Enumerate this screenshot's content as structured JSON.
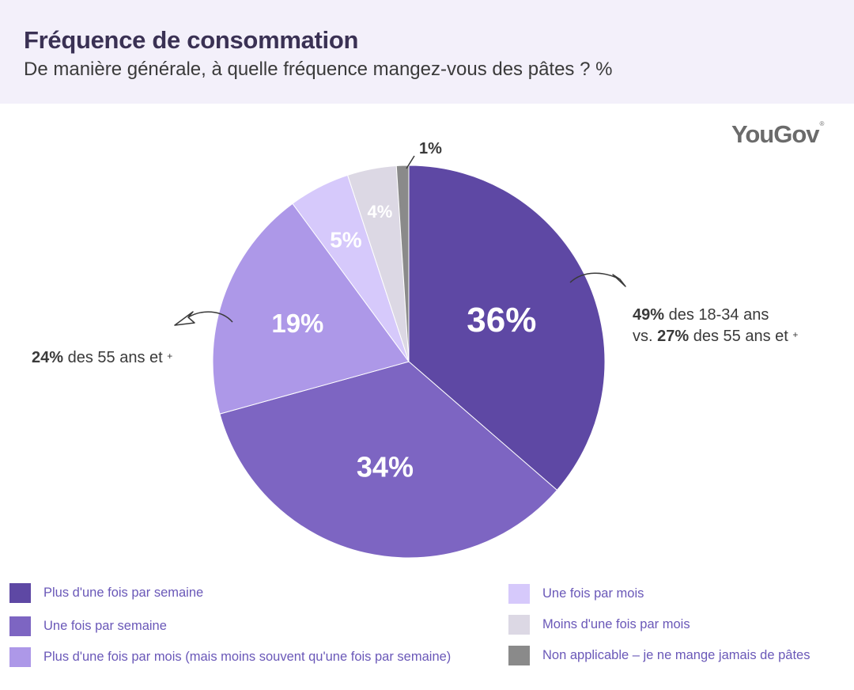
{
  "chart_data": {
    "type": "pie",
    "title": "Fréquence de consommation",
    "subtitle": "De manière générale, à quelle fréquence mangez-vous des pâtes ? %",
    "categories": [
      "Plus d'une fois par semaine",
      "Une fois par semaine",
      "Plus d'une fois par mois (mais moins souvent qu'une fois par semaine)",
      "Une fois par mois",
      "Moins d'une fois par mois",
      "Non applicable – je ne mange jamais de pâtes"
    ],
    "values": [
      36,
      34,
      19,
      5,
      4,
      1
    ],
    "labels": [
      "36%",
      "34%",
      "19%",
      "5%",
      "4%",
      "1%"
    ],
    "colors": [
      "#5e48a4",
      "#7d65c2",
      "#ad98e8",
      "#d6c9fb",
      "#dcd8e4",
      "#8a8a8a"
    ],
    "annotations": {
      "right": {
        "pct1": "49%",
        "text1": "des 18-34 ans",
        "vs": "vs.",
        "pct2": "27%",
        "text2": "des 55 ans et",
        "plus": "+"
      },
      "left": {
        "pct": "24%",
        "text": "des 55 ans et",
        "plus": "+"
      }
    },
    "legend_position": "bottom"
  },
  "brand": {
    "name": "YouGov",
    "mark": "®"
  }
}
